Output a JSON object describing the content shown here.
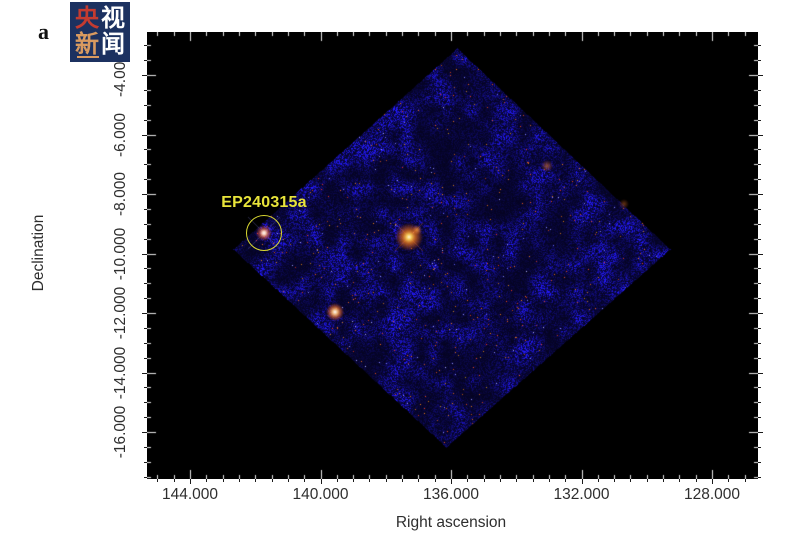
{
  "figure_label": "a",
  "logo": {
    "name": "CCTV News (Yangshi Xinwen) logo",
    "bg_color": "#1c3160",
    "chars": [
      {
        "char": "央",
        "color": "#c43b30"
      },
      {
        "char": "视",
        "color": "#ffffff"
      },
      {
        "char": "新",
        "color": "#d89a60"
      },
      {
        "char": "闻",
        "color": "#ffffff"
      }
    ]
  },
  "axes": {
    "xlabel": "Right ascension",
    "ylabel": "Declination",
    "x_tick_labels": [
      "144.000",
      "140.000",
      "136.000",
      "132.000",
      "128.000"
    ],
    "y_tick_labels": [
      "-4.000",
      "-6.000",
      "-8.000",
      "-10.000",
      "-12.000",
      "-14.000",
      "-16.000"
    ]
  },
  "annotation": {
    "label": "EP240315a",
    "color": "#e8e43a"
  },
  "chart_data": {
    "type": "heatmap",
    "title": "",
    "xlabel": "Right ascension",
    "ylabel": "Declination",
    "xlim": [
      145.3,
      126.6
    ],
    "ylim": [
      -17.5,
      -2.6
    ],
    "x_ticks": [
      144.0,
      140.0,
      136.0,
      132.0,
      128.0
    ],
    "y_ticks": [
      -4.0,
      -6.0,
      -8.0,
      -10.0,
      -12.0,
      -14.0,
      -16.0
    ],
    "grid": false,
    "field_description": "Diamond-shaped (rotated square) X-ray detector field of view filled with dense blue photon noise and sparse red-orange speckles on black background",
    "sources": [
      {
        "name": "EP240315a",
        "ra": 141.7,
        "dec": -9.3,
        "appearance": "white-pink point source circled in yellow",
        "annotated": true
      },
      {
        "name": "bright field source",
        "ra": 137.2,
        "dec": -9.4,
        "appearance": "bright orange-yellow point source near field center"
      },
      {
        "name": "field source",
        "ra": 139.4,
        "dec": -11.9,
        "appearance": "orange-white point source lower left"
      },
      {
        "name": "faint source",
        "ra": 133.1,
        "dec": -7.1,
        "appearance": "faint orange clump upper right"
      }
    ]
  }
}
